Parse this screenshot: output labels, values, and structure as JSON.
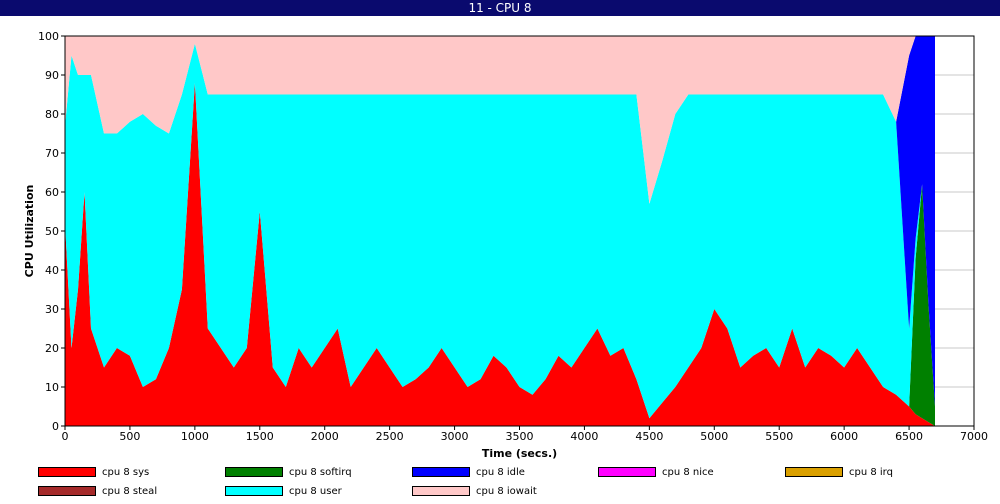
{
  "window": {
    "title": "11 - CPU 8"
  },
  "chart_data": {
    "type": "area",
    "stacked": true,
    "xlabel": "Time (secs.)",
    "ylabel": "CPU Utilization",
    "xlim": [
      0,
      7000
    ],
    "ylim": [
      0,
      100
    ],
    "xticks": [
      0,
      500,
      1000,
      1500,
      2000,
      2500,
      3000,
      3500,
      4000,
      4500,
      5000,
      5500,
      6000,
      6500,
      7000
    ],
    "yticks": [
      0,
      10,
      20,
      30,
      40,
      50,
      60,
      70,
      80,
      90,
      100
    ],
    "grid": true,
    "legend_position": "bottom",
    "stack_order": [
      "cpu 8 sys",
      "cpu 8 steal",
      "cpu 8 softirq",
      "cpu 8 user",
      "cpu 8 idle",
      "cpu 8 iowait"
    ],
    "x": [
      0,
      50,
      100,
      150,
      200,
      300,
      400,
      500,
      600,
      700,
      800,
      900,
      1000,
      1100,
      1200,
      1300,
      1400,
      1500,
      1600,
      1700,
      1800,
      1900,
      2000,
      2100,
      2200,
      2300,
      2400,
      2500,
      2600,
      2700,
      2800,
      2900,
      3000,
      3100,
      3200,
      3300,
      3400,
      3500,
      3600,
      3700,
      3800,
      3900,
      4000,
      4100,
      4200,
      4300,
      4400,
      4500,
      4600,
      4700,
      4800,
      4900,
      5000,
      5100,
      5200,
      5300,
      5400,
      5500,
      5600,
      5700,
      5800,
      5900,
      6000,
      6100,
      6200,
      6300,
      6400,
      6500,
      6550,
      6600,
      6650,
      6700
    ],
    "series": [
      {
        "name": "cpu 8 sys",
        "color": "#ff0000",
        "values": [
          52,
          20,
          35,
          60,
          25,
          15,
          20,
          18,
          10,
          12,
          20,
          35,
          88,
          25,
          20,
          15,
          20,
          55,
          15,
          10,
          20,
          15,
          20,
          25,
          10,
          15,
          20,
          15,
          10,
          12,
          15,
          20,
          15,
          10,
          12,
          18,
          15,
          10,
          8,
          12,
          18,
          15,
          20,
          25,
          18,
          20,
          12,
          2,
          6,
          10,
          15,
          20,
          30,
          25,
          15,
          18,
          20,
          15,
          25,
          15,
          20,
          18,
          15,
          20,
          15,
          10,
          8,
          5,
          3,
          2,
          1,
          0
        ]
      },
      {
        "name": "cpu 8 steal",
        "color": "#a52a2a",
        "values": [
          0,
          0,
          0,
          0,
          0,
          0,
          0,
          0,
          0,
          0,
          0,
          0,
          0,
          0,
          0,
          0,
          0,
          0,
          0,
          0,
          0,
          0,
          0,
          0,
          0,
          0,
          0,
          0,
          0,
          0,
          0,
          0,
          0,
          0,
          0,
          0,
          0,
          0,
          0,
          0,
          0,
          0,
          0,
          0,
          0,
          0,
          0,
          0,
          0,
          0,
          0,
          0,
          0,
          0,
          0,
          0,
          0,
          0,
          0,
          0,
          0,
          0,
          0,
          0,
          0,
          0,
          0,
          0,
          0,
          0,
          0,
          0
        ]
      },
      {
        "name": "cpu 8 softirq",
        "color": "#008000",
        "values": [
          0,
          0,
          0,
          0,
          0,
          0,
          0,
          0,
          0,
          0,
          0,
          0,
          0,
          0,
          0,
          0,
          0,
          0,
          0,
          0,
          0,
          0,
          0,
          0,
          0,
          0,
          0,
          0,
          0,
          0,
          0,
          0,
          0,
          0,
          0,
          0,
          0,
          0,
          0,
          0,
          0,
          0,
          0,
          0,
          0,
          0,
          0,
          0,
          0,
          0,
          0,
          0,
          0,
          0,
          0,
          0,
          0,
          0,
          0,
          0,
          0,
          0,
          0,
          0,
          0,
          0,
          0,
          0,
          40,
          60,
          30,
          5
        ]
      },
      {
        "name": "cpu 8 user",
        "color": "#00ffff",
        "values": [
          25,
          75,
          55,
          30,
          65,
          60,
          55,
          60,
          70,
          65,
          55,
          50,
          10,
          60,
          65,
          70,
          65,
          30,
          70,
          75,
          65,
          70,
          65,
          60,
          75,
          70,
          65,
          70,
          75,
          73,
          70,
          65,
          70,
          75,
          73,
          67,
          70,
          75,
          77,
          73,
          67,
          70,
          65,
          60,
          67,
          65,
          73,
          55,
          62,
          70,
          70,
          65,
          55,
          60,
          70,
          67,
          65,
          70,
          60,
          70,
          65,
          67,
          70,
          65,
          70,
          75,
          70,
          20,
          5,
          0,
          0,
          0
        ]
      },
      {
        "name": "cpu 8 idle",
        "color": "#0000ff",
        "values": [
          0,
          0,
          0,
          0,
          0,
          0,
          0,
          0,
          0,
          0,
          0,
          0,
          0,
          0,
          0,
          0,
          0,
          0,
          0,
          0,
          0,
          0,
          0,
          0,
          0,
          0,
          0,
          0,
          0,
          0,
          0,
          0,
          0,
          0,
          0,
          0,
          0,
          0,
          0,
          0,
          0,
          0,
          0,
          0,
          0,
          0,
          0,
          0,
          0,
          0,
          0,
          0,
          0,
          0,
          0,
          0,
          0,
          0,
          0,
          0,
          0,
          0,
          0,
          0,
          0,
          0,
          0,
          70,
          52,
          38,
          69,
          95
        ]
      },
      {
        "name": "cpu 8 nice",
        "color": "#ff00ff",
        "values": [
          0,
          0,
          0,
          0,
          0,
          0,
          0,
          0,
          0,
          0,
          0,
          0,
          0,
          0,
          0,
          0,
          0,
          0,
          0,
          0,
          0,
          0,
          0,
          0,
          0,
          0,
          0,
          0,
          0,
          0,
          0,
          0,
          0,
          0,
          0,
          0,
          0,
          0,
          0,
          0,
          0,
          0,
          0,
          0,
          0,
          0,
          0,
          0,
          0,
          0,
          0,
          0,
          0,
          0,
          0,
          0,
          0,
          0,
          0,
          0,
          0,
          0,
          0,
          0,
          0,
          0,
          0,
          0,
          0,
          0,
          0,
          0
        ]
      },
      {
        "name": "cpu 8 irq",
        "color": "#daa000",
        "values": [
          0,
          0,
          0,
          0,
          0,
          0,
          0,
          0,
          0,
          0,
          0,
          0,
          0,
          0,
          0,
          0,
          0,
          0,
          0,
          0,
          0,
          0,
          0,
          0,
          0,
          0,
          0,
          0,
          0,
          0,
          0,
          0,
          0,
          0,
          0,
          0,
          0,
          0,
          0,
          0,
          0,
          0,
          0,
          0,
          0,
          0,
          0,
          0,
          0,
          0,
          0,
          0,
          0,
          0,
          0,
          0,
          0,
          0,
          0,
          0,
          0,
          0,
          0,
          0,
          0,
          0,
          0,
          0,
          0,
          0,
          0,
          0
        ]
      },
      {
        "name": "cpu 8 iowait",
        "color": "#ffc8c8",
        "values": [
          23,
          5,
          10,
          10,
          10,
          25,
          25,
          22,
          20,
          23,
          25,
          15,
          2,
          15,
          15,
          15,
          15,
          15,
          15,
          15,
          15,
          15,
          15,
          15,
          15,
          15,
          15,
          15,
          15,
          15,
          15,
          15,
          15,
          15,
          15,
          15,
          15,
          15,
          15,
          15,
          15,
          15,
          15,
          15,
          15,
          15,
          15,
          43,
          32,
          20,
          15,
          15,
          15,
          15,
          15,
          15,
          15,
          15,
          15,
          15,
          15,
          15,
          15,
          15,
          15,
          15,
          22,
          5,
          0,
          0,
          0,
          0
        ]
      }
    ]
  },
  "legend": {
    "items": [
      {
        "label": "cpu 8 sys",
        "color": "#ff0000"
      },
      {
        "label": "cpu 8 softirq",
        "color": "#008000"
      },
      {
        "label": "cpu 8 idle",
        "color": "#0000ff"
      },
      {
        "label": "cpu 8 nice",
        "color": "#ff00ff"
      },
      {
        "label": "cpu 8 irq",
        "color": "#daa000"
      },
      {
        "label": "cpu 8 steal",
        "color": "#a52a2a"
      },
      {
        "label": "cpu 8 user",
        "color": "#00ffff"
      },
      {
        "label": "cpu 8 iowait",
        "color": "#ffc8c8"
      }
    ]
  }
}
